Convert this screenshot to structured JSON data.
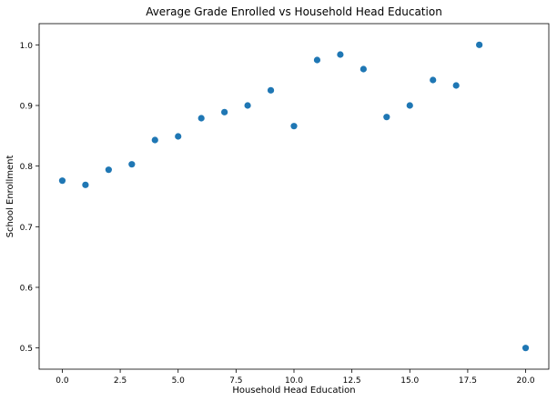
{
  "chart_data": {
    "type": "scatter",
    "title": "Average Grade Enrolled vs Household Head Education",
    "xlabel": "Household Head Education",
    "ylabel": "School Enrollment",
    "xlim": [
      -1,
      21
    ],
    "ylim": [
      0.465,
      1.035
    ],
    "xticks": [
      0.0,
      2.5,
      5.0,
      7.5,
      10.0,
      12.5,
      15.0,
      17.5,
      20.0
    ],
    "xtick_labels": [
      "0.0",
      "2.5",
      "5.0",
      "7.5",
      "10.0",
      "12.5",
      "15.0",
      "17.5",
      "20.0"
    ],
    "yticks": [
      0.5,
      0.6,
      0.7,
      0.8,
      0.9,
      1.0
    ],
    "ytick_labels": [
      "0.5",
      "0.6",
      "0.7",
      "0.8",
      "0.9",
      "1.0"
    ],
    "marker_color": "#1f77b4",
    "grid": false,
    "series": [
      {
        "name": "enrollment",
        "points": [
          {
            "x": 0,
            "y": 0.776
          },
          {
            "x": 1,
            "y": 0.769
          },
          {
            "x": 2,
            "y": 0.794
          },
          {
            "x": 3,
            "y": 0.803
          },
          {
            "x": 4,
            "y": 0.843
          },
          {
            "x": 5,
            "y": 0.849
          },
          {
            "x": 6,
            "y": 0.879
          },
          {
            "x": 7,
            "y": 0.889
          },
          {
            "x": 8,
            "y": 0.9
          },
          {
            "x": 9,
            "y": 0.925
          },
          {
            "x": 10,
            "y": 0.866
          },
          {
            "x": 11,
            "y": 0.975
          },
          {
            "x": 12,
            "y": 0.984
          },
          {
            "x": 13,
            "y": 0.96
          },
          {
            "x": 14,
            "y": 0.881
          },
          {
            "x": 15,
            "y": 0.9
          },
          {
            "x": 16,
            "y": 0.942
          },
          {
            "x": 17,
            "y": 0.933
          },
          {
            "x": 18,
            "y": 1.0
          },
          {
            "x": 20,
            "y": 0.5
          }
        ]
      }
    ]
  }
}
